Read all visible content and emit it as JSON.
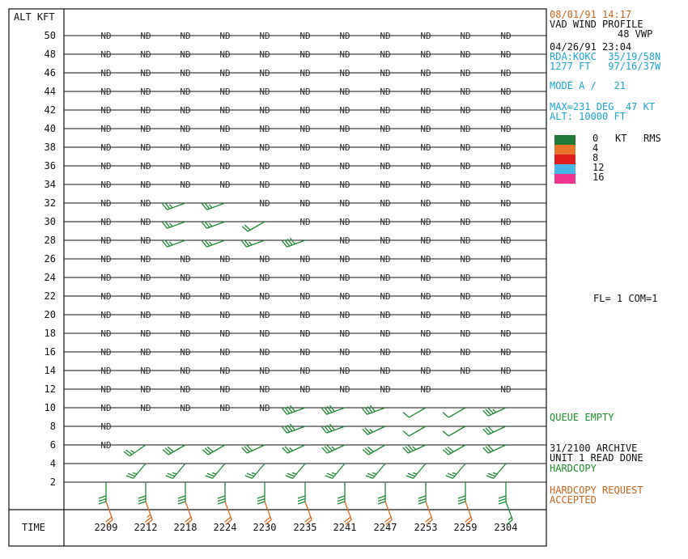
{
  "header": {
    "y_axis_title": "ALT KFT",
    "x_axis_title": "TIME"
  },
  "side_panel": {
    "date_time": "08/01/91 14:17",
    "product": "VAD WIND PROFILE",
    "product_code": "48 VWP",
    "volume_time": "04/26/91 23:04",
    "rda_line": "RDA:KOKC  35/19/58N",
    "elev_line": "1277 FT   97/16/37W",
    "mode_line": "MODE A /   21",
    "max_line": "MAX=231 DEG  47 KT",
    "alt_line": "ALT: 10000 FT",
    "legend_header_kt": "KT",
    "legend_header_rms": "RMS",
    "legend": [
      {
        "label": "0",
        "color": "#1e7a34"
      },
      {
        "label": "4",
        "color": "#e8732a"
      },
      {
        "label": "8",
        "color": "#e01c1c"
      },
      {
        "label": "12",
        "color": "#49b6e8"
      },
      {
        "label": "16",
        "color": "#f0338c"
      }
    ],
    "fl_com": "FL= 1 COM=1",
    "queue": "QUEUE EMPTY",
    "archive1": "31/2100 ARCHIVE",
    "archive2": "UNIT 1 READ DONE",
    "hardcopy": "HARDCOPY",
    "request1": "HARDCOPY REQUEST",
    "request2": "ACCEPTED"
  },
  "chart_data": {
    "type": "wind_barb_profile",
    "x_axis_label": "TIME",
    "y_axis_label": "ALT KFT",
    "times": [
      "2209",
      "2212",
      "2218",
      "2224",
      "2230",
      "2235",
      "2241",
      "2247",
      "2253",
      "2259",
      "2304"
    ],
    "altitudes_kft": [
      50,
      48,
      46,
      44,
      42,
      40,
      38,
      36,
      34,
      32,
      30,
      28,
      26,
      24,
      22,
      20,
      18,
      16,
      14,
      12,
      10,
      8,
      6,
      4,
      2
    ],
    "no_data_label": "ND",
    "missing_cell_flag": "ND",
    "barbs": [
      {
        "alt": 10,
        "time": "2259",
        "dir": 240,
        "speed": 10,
        "rms": 0
      },
      {
        "alt": 8,
        "time": "2235",
        "dir": 250,
        "speed": 40,
        "rms": 0
      },
      {
        "alt": 8,
        "time": "2241",
        "dir": 250,
        "speed": 40,
        "rms": 0
      },
      {
        "alt": 8,
        "time": "2247",
        "dir": 245,
        "speed": 25,
        "rms": 0
      },
      {
        "alt": 8,
        "time": "2253",
        "dir": 240,
        "speed": 10,
        "rms": 0
      },
      {
        "alt": 8,
        "time": "2259",
        "dir": 240,
        "speed": 10,
        "rms": 0
      },
      {
        "alt": 8,
        "time": "2304",
        "dir": 245,
        "speed": 30,
        "rms": 0
      },
      {
        "alt": 6,
        "time": "2212",
        "dir": 235,
        "speed": 25,
        "rms": 0
      },
      {
        "alt": 6,
        "time": "2218",
        "dir": 240,
        "speed": 30,
        "rms": 0
      },
      {
        "alt": 6,
        "time": "2224",
        "dir": 240,
        "speed": 30,
        "rms": 0
      },
      {
        "alt": 6,
        "time": "2230",
        "dir": 245,
        "speed": 30,
        "rms": 0
      },
      {
        "alt": 6,
        "time": "2235",
        "dir": 245,
        "speed": 25,
        "rms": 0
      },
      {
        "alt": 6,
        "time": "2241",
        "dir": 245,
        "speed": 35,
        "rms": 0
      },
      {
        "alt": 6,
        "time": "2247",
        "dir": 240,
        "speed": 30,
        "rms": 0
      },
      {
        "alt": 6,
        "time": "2253",
        "dir": 245,
        "speed": 35,
        "rms": 0
      },
      {
        "alt": 6,
        "time": "2259",
        "dir": 240,
        "speed": 30,
        "rms": 0
      },
      {
        "alt": 6,
        "time": "2304",
        "dir": 245,
        "speed": 30,
        "rms": 0
      },
      {
        "alt": 4,
        "time": "2212",
        "dir": 220,
        "speed": 25,
        "rms": 0
      },
      {
        "alt": 4,
        "time": "2218",
        "dir": 220,
        "speed": 25,
        "rms": 0
      },
      {
        "alt": 4,
        "time": "2224",
        "dir": 220,
        "speed": 25,
        "rms": 0
      },
      {
        "alt": 4,
        "time": "2230",
        "dir": 220,
        "speed": 25,
        "rms": 0
      },
      {
        "alt": 4,
        "time": "2235",
        "dir": 220,
        "speed": 25,
        "rms": 0
      },
      {
        "alt": 4,
        "time": "2241",
        "dir": 220,
        "speed": 25,
        "rms": 0
      },
      {
        "alt": 4,
        "time": "2247",
        "dir": 220,
        "speed": 25,
        "rms": 0
      },
      {
        "alt": 4,
        "time": "2253",
        "dir": 220,
        "speed": 25,
        "rms": 0
      },
      {
        "alt": 4,
        "time": "2259",
        "dir": 220,
        "speed": 25,
        "rms": 0
      },
      {
        "alt": 4,
        "time": "2304",
        "dir": 220,
        "speed": 25,
        "rms": 0
      },
      {
        "alt": 2,
        "time": "2209",
        "dir": 180,
        "speed": 30,
        "rms": 0
      },
      {
        "alt": 2,
        "time": "2212",
        "dir": 180,
        "speed": 30,
        "rms": 0
      },
      {
        "alt": 2,
        "time": "2218",
        "dir": 180,
        "speed": 30,
        "rms": 0
      },
      {
        "alt": 2,
        "time": "2224",
        "dir": 180,
        "speed": 30,
        "rms": 0
      },
      {
        "alt": 2,
        "time": "2230",
        "dir": 180,
        "speed": 30,
        "rms": 0
      },
      {
        "alt": 2,
        "time": "2235",
        "dir": 180,
        "speed": 30,
        "rms": 0
      },
      {
        "alt": 2,
        "time": "2241",
        "dir": 180,
        "speed": 30,
        "rms": 0
      },
      {
        "alt": 2,
        "time": "2247",
        "dir": 180,
        "speed": 30,
        "rms": 0
      },
      {
        "alt": 2,
        "time": "2253",
        "dir": 180,
        "speed": 30,
        "rms": 0
      },
      {
        "alt": 2,
        "time": "2259",
        "dir": 180,
        "speed": 30,
        "rms": 0
      },
      {
        "alt": 2,
        "time": "2304",
        "dir": 180,
        "speed": 30,
        "rms": 0
      },
      {
        "alt": 0.6,
        "time": "2209",
        "dir": 160,
        "speed": 20,
        "rms": 4
      },
      {
        "alt": 0.6,
        "time": "2212",
        "dir": 160,
        "speed": 25,
        "rms": 4
      },
      {
        "alt": 0.6,
        "time": "2218",
        "dir": 160,
        "speed": 20,
        "rms": 4
      },
      {
        "alt": 0.6,
        "time": "2224",
        "dir": 160,
        "speed": 20,
        "rms": 4
      },
      {
        "alt": 0.6,
        "time": "2230",
        "dir": 160,
        "speed": 20,
        "rms": 4
      },
      {
        "alt": 0.6,
        "time": "2235",
        "dir": 160,
        "speed": 20,
        "rms": 4
      },
      {
        "alt": 0.6,
        "time": "2241",
        "dir": 160,
        "speed": 20,
        "rms": 4
      },
      {
        "alt": 0.6,
        "time": "2247",
        "dir": 160,
        "speed": 20,
        "rms": 4
      },
      {
        "alt": 0.6,
        "time": "2253",
        "dir": 160,
        "speed": 20,
        "rms": 4
      },
      {
        "alt": 0.6,
        "time": "2259",
        "dir": 160,
        "speed": 20,
        "rms": 4
      },
      {
        "alt": 0.6,
        "time": "2304",
        "dir": 160,
        "speed": 15,
        "rms": 0
      },
      {
        "alt": 32,
        "time": "2218",
        "dir": 250,
        "speed": 25,
        "rms": 0
      },
      {
        "alt": 32,
        "time": "2224",
        "dir": 250,
        "speed": 25,
        "rms": 0
      },
      {
        "alt": 30,
        "time": "2218",
        "dir": 250,
        "speed": 25,
        "rms": 0
      },
      {
        "alt": 30,
        "time": "2224",
        "dir": 250,
        "speed": 25,
        "rms": 0
      },
      {
        "alt": 30,
        "time": "2230",
        "dir": 240,
        "speed": 20,
        "rms": 0
      },
      {
        "alt": 28,
        "time": "2218",
        "dir": 250,
        "speed": 25,
        "rms": 0
      },
      {
        "alt": 28,
        "time": "2224",
        "dir": 250,
        "speed": 25,
        "rms": 0
      },
      {
        "alt": 28,
        "time": "2230",
        "dir": 250,
        "speed": 25,
        "rms": 0
      },
      {
        "alt": 28,
        "time": "2235",
        "dir": 250,
        "speed": 40,
        "rms": 0
      },
      {
        "alt": 10,
        "time": "2235",
        "dir": 250,
        "speed": 40,
        "rms": 0
      },
      {
        "alt": 10,
        "time": "2241",
        "dir": 250,
        "speed": 40,
        "rms": 0
      },
      {
        "alt": 10,
        "time": "2247",
        "dir": 250,
        "speed": 40,
        "rms": 0
      },
      {
        "alt": 10,
        "time": "2253",
        "dir": 240,
        "speed": 10,
        "rms": 0
      },
      {
        "alt": 10,
        "time": "2304",
        "dir": 245,
        "speed": 35,
        "rms": 0
      }
    ],
    "legend": {
      "title": "KT RMS",
      "entries": [
        "0",
        "4",
        "8",
        "12",
        "16"
      ]
    }
  }
}
